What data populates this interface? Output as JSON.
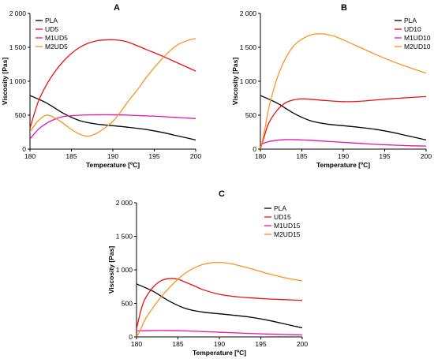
{
  "figure": {
    "panels": [
      {
        "letter": "A"
      },
      {
        "letter": "B"
      },
      {
        "letter": "C"
      }
    ]
  },
  "chart_data": [
    {
      "type": "line",
      "title": "A",
      "xlabel": "Temperature [ºC]",
      "ylabel": "Viscosity [Pas]",
      "xlim": [
        180,
        200
      ],
      "ylim": [
        0,
        2000
      ],
      "xticks": [
        "180",
        "185",
        "190",
        "195",
        "200"
      ],
      "yticks": [
        "0",
        "500",
        "1 000",
        "1 500",
        "2 000"
      ],
      "grid": false,
      "legend": "top-left",
      "series": [
        {
          "name": "PLA",
          "color": "#000000",
          "x": [
            180,
            182,
            184,
            186,
            188,
            190,
            192,
            194,
            196,
            198,
            200
          ],
          "y": [
            790,
            680,
            530,
            420,
            370,
            345,
            320,
            290,
            245,
            190,
            135
          ]
        },
        {
          "name": "UD5",
          "color": "#ee1111",
          "x": [
            180,
            181,
            182,
            183,
            184,
            185,
            186,
            187,
            188,
            189,
            190,
            191,
            192,
            194,
            196,
            198,
            200
          ],
          "y": [
            310,
            700,
            950,
            1140,
            1290,
            1410,
            1500,
            1560,
            1595,
            1610,
            1612,
            1600,
            1570,
            1470,
            1370,
            1260,
            1150
          ]
        },
        {
          "name": "M1UD5",
          "color": "#ee11aa",
          "x": [
            180,
            181,
            182,
            183,
            184,
            186,
            188,
            190,
            192,
            194,
            196,
            198,
            200
          ],
          "y": [
            150,
            290,
            380,
            440,
            480,
            500,
            505,
            505,
            500,
            490,
            480,
            465,
            450
          ]
        },
        {
          "name": "M2UD5",
          "color": "#f79521",
          "x": [
            180,
            181,
            182,
            183,
            184,
            185,
            186,
            187,
            188,
            189,
            190,
            191,
            192,
            193,
            194,
            195,
            196,
            197,
            198,
            199,
            200
          ],
          "y": [
            255,
            420,
            500,
            460,
            380,
            290,
            220,
            190,
            230,
            310,
            410,
            560,
            730,
            880,
            1050,
            1200,
            1340,
            1460,
            1550,
            1600,
            1630
          ]
        }
      ]
    },
    {
      "type": "line",
      "title": "B",
      "xlabel": "Temperature [ºC]",
      "ylabel": "Viscosity [Pas]",
      "xlim": [
        180,
        200
      ],
      "ylim": [
        0,
        2000
      ],
      "xticks": [
        "180",
        "185",
        "190",
        "195",
        "200"
      ],
      "yticks": [
        "0",
        "500",
        "1 000",
        "1 500",
        "2 000"
      ],
      "grid": false,
      "legend": "top-right",
      "series": [
        {
          "name": "PLA",
          "color": "#000000",
          "x": [
            180,
            182,
            184,
            186,
            188,
            190,
            192,
            194,
            196,
            198,
            200
          ],
          "y": [
            790,
            680,
            530,
            420,
            370,
            345,
            320,
            290,
            245,
            190,
            135
          ]
        },
        {
          "name": "UD10",
          "color": "#ee1111",
          "x": [
            180,
            180.5,
            181,
            182,
            183,
            184,
            185,
            186,
            188,
            190,
            192,
            194,
            196,
            198,
            200
          ],
          "y": [
            0,
            200,
            380,
            570,
            680,
            725,
            740,
            735,
            715,
            700,
            705,
            725,
            745,
            760,
            775
          ]
        },
        {
          "name": "M1UD10",
          "color": "#ee11aa",
          "x": [
            180,
            181,
            182,
            183,
            184,
            186,
            188,
            190,
            192,
            194,
            196,
            198,
            200
          ],
          "y": [
            70,
            110,
            130,
            140,
            140,
            130,
            115,
            100,
            85,
            70,
            60,
            50,
            45
          ]
        },
        {
          "name": "M2UD10",
          "color": "#f79521",
          "x": [
            180,
            180.5,
            181,
            182,
            183,
            184,
            185,
            186,
            187,
            188,
            189,
            190,
            192,
            194,
            196,
            198,
            200
          ],
          "y": [
            0,
            270,
            600,
            1040,
            1330,
            1520,
            1620,
            1680,
            1700,
            1690,
            1660,
            1610,
            1500,
            1390,
            1290,
            1200,
            1120
          ]
        }
      ]
    },
    {
      "type": "line",
      "title": "C",
      "xlabel": "Temperature [ºC]",
      "ylabel": "Viscosity [Pas]",
      "xlim": [
        180,
        200
      ],
      "ylim": [
        0,
        2000
      ],
      "xticks": [
        "180",
        "185",
        "190",
        "195",
        "200"
      ],
      "yticks": [
        "0",
        "500",
        "1 000",
        "1 500",
        "2 000"
      ],
      "grid": false,
      "legend": "top-right",
      "series": [
        {
          "name": "PLA",
          "color": "#000000",
          "x": [
            180,
            182,
            184,
            186,
            188,
            190,
            192,
            194,
            196,
            198,
            200
          ],
          "y": [
            790,
            680,
            530,
            420,
            370,
            345,
            320,
            290,
            245,
            190,
            135
          ]
        },
        {
          "name": "UD15",
          "color": "#ee1111",
          "x": [
            180,
            180.5,
            181,
            182,
            183,
            184,
            185,
            186,
            187,
            188,
            190,
            192,
            194,
            196,
            198,
            200
          ],
          "y": [
            120,
            380,
            560,
            740,
            840,
            870,
            860,
            810,
            760,
            705,
            635,
            600,
            580,
            565,
            555,
            545
          ]
        },
        {
          "name": "M1UD15",
          "color": "#ee11aa",
          "x": [
            180,
            182,
            184,
            186,
            188,
            190,
            192,
            194,
            196,
            198,
            200
          ],
          "y": [
            90,
            95,
            95,
            90,
            80,
            70,
            60,
            50,
            42,
            35,
            30
          ]
        },
        {
          "name": "M2UD15",
          "color": "#f79521",
          "x": [
            180,
            180.5,
            181,
            182,
            183,
            184,
            185,
            186,
            187,
            188,
            189,
            190,
            191,
            192,
            194,
            196,
            198,
            200
          ],
          "y": [
            0,
            110,
            250,
            440,
            600,
            740,
            860,
            960,
            1030,
            1080,
            1105,
            1110,
            1100,
            1075,
            1010,
            940,
            880,
            835
          ]
        }
      ]
    }
  ]
}
